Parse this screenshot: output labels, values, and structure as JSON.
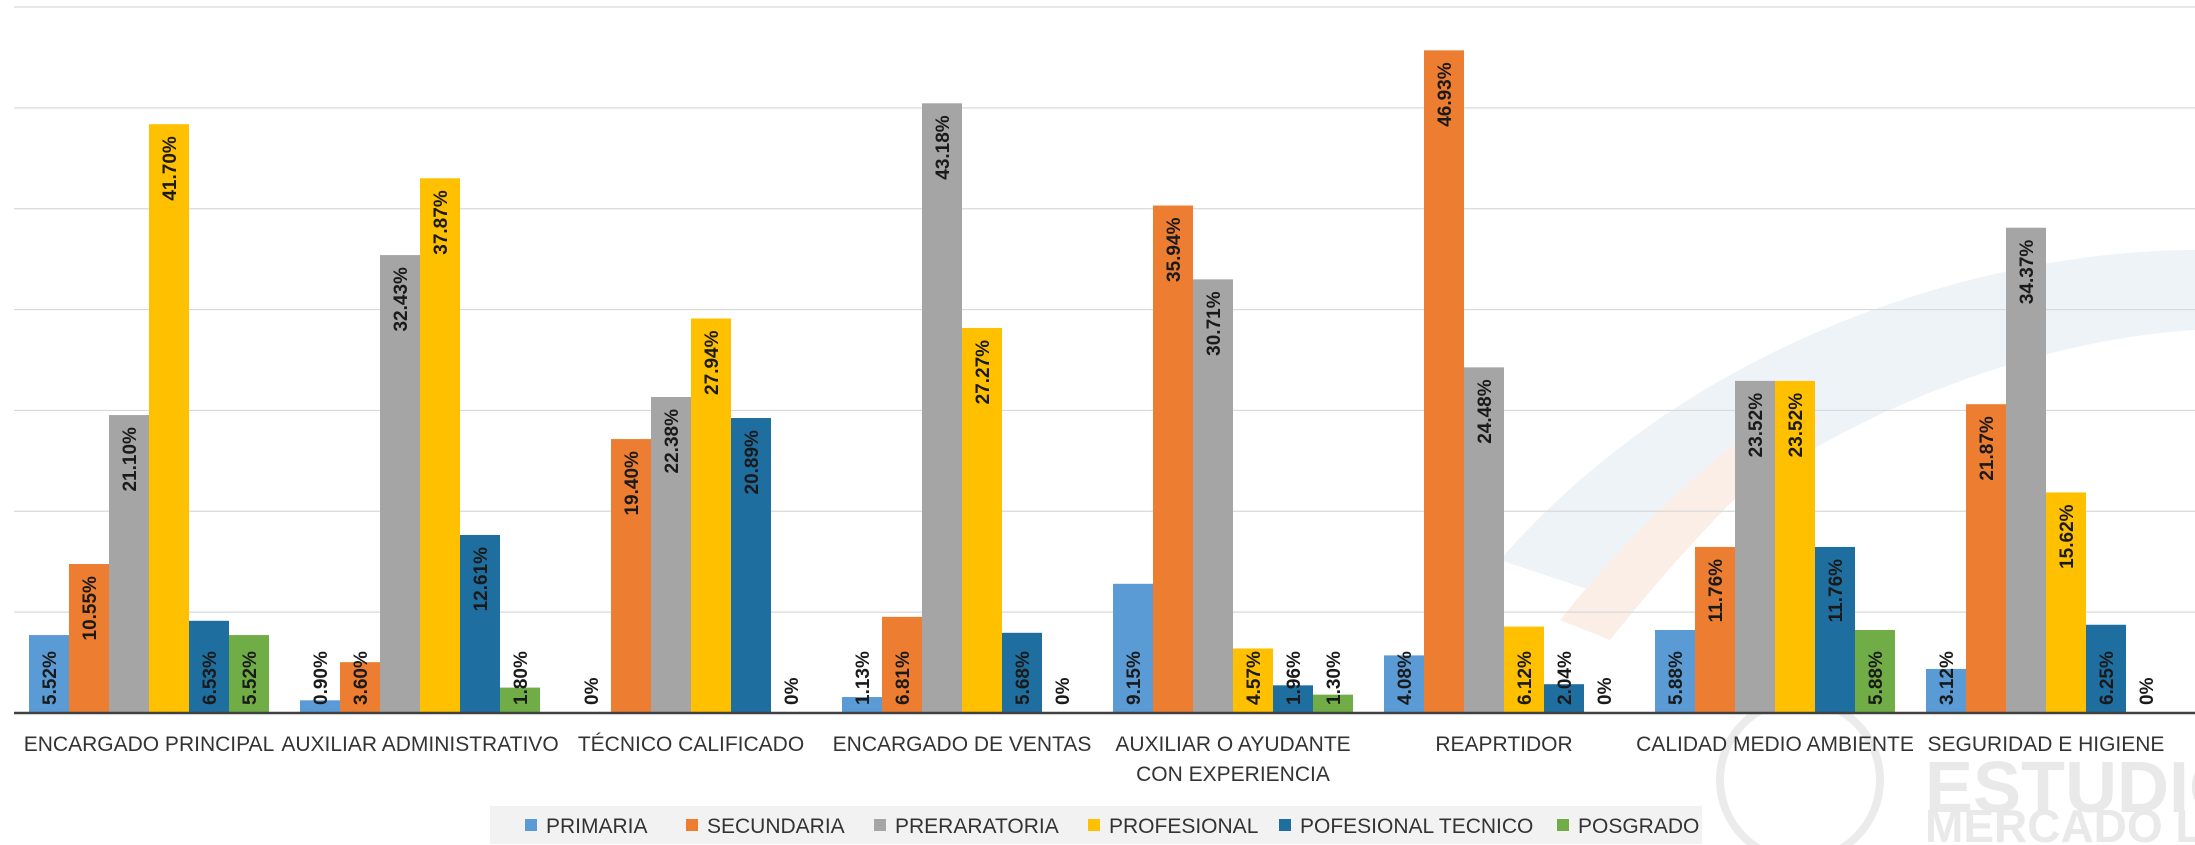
{
  "chart_data": {
    "type": "bar",
    "categories": [
      "ENCARGADO PRINCIPAL",
      "AUXILIAR ADMINISTRATIVO",
      "TÉCNICO CALIFICADO",
      "ENCARGADO DE VENTAS",
      "AUXILIAR O AYUDANTE CON EXPERIENCIA",
      "REAPRTIDOR",
      "CALIDAD MEDIO AMBIENTE",
      "SEGURIDAD E HIGIENE"
    ],
    "category_lines": [
      [
        "ENCARGADO PRINCIPAL"
      ],
      [
        "AUXILIAR ADMINISTRATIVO"
      ],
      [
        "TÉCNICO CALIFICADO"
      ],
      [
        "ENCARGADO DE VENTAS"
      ],
      [
        "AUXILIAR O AYUDANTE",
        "CON EXPERIENCIA"
      ],
      [
        "REAPRTIDOR"
      ],
      [
        "CALIDAD MEDIO AMBIENTE"
      ],
      [
        "SEGURIDAD E HIGIENE"
      ]
    ],
    "series": [
      {
        "name": "PRIMARIA",
        "color": "#5b9bd5",
        "values": [
          5.52,
          0.9,
          0,
          1.13,
          9.15,
          4.08,
          5.88,
          3.12
        ],
        "labels": [
          "5.52%",
          "0.90%",
          "0%",
          "1.13%",
          "9.15%",
          "4.08%",
          "5.88%",
          "3.12%"
        ]
      },
      {
        "name": "SECUNDARIA",
        "color": "#ed7d31",
        "values": [
          10.55,
          3.6,
          19.4,
          6.81,
          35.94,
          46.93,
          11.76,
          21.87
        ],
        "labels": [
          "10.55%",
          "3.60%",
          "19.40%",
          "6.81%",
          "35.94%",
          "46.93%",
          "11.76%",
          "21.87%"
        ]
      },
      {
        "name": "PRERARATORIA",
        "color": "#a5a5a5",
        "values": [
          21.1,
          32.43,
          22.38,
          43.18,
          30.71,
          24.48,
          23.52,
          34.37
        ],
        "labels": [
          "21.10%",
          "32.43%",
          "22.38%",
          "43.18%",
          "30.71%",
          "24.48%",
          "23.52%",
          "34.37%"
        ]
      },
      {
        "name": "PROFESIONAL",
        "color": "#ffc000",
        "values": [
          41.7,
          37.87,
          27.94,
          27.27,
          4.57,
          6.12,
          23.52,
          15.62
        ],
        "labels": [
          "41.70%",
          "37.87%",
          "27.94%",
          "27.27%",
          "4.57%",
          "6.12%",
          "23.52%",
          "15.62%"
        ]
      },
      {
        "name": "POFESIONAL TECNICO",
        "color": "#1f6ea0",
        "values": [
          6.53,
          12.61,
          20.89,
          5.68,
          1.96,
          2.04,
          11.76,
          6.25
        ],
        "labels": [
          "6.53%",
          "12.61%",
          "20.89%",
          "5.68%",
          "1.96%",
          "2.04%",
          "11.76%",
          "6.25%"
        ]
      },
      {
        "name": "POSGRADO",
        "color": "#70ad47",
        "values": [
          5.52,
          1.8,
          0,
          0,
          1.3,
          0,
          5.88,
          0
        ],
        "labels": [
          "5.52%",
          "1.80%",
          "0%",
          "0%",
          "1.30%",
          "0%",
          "5.88%",
          "0%"
        ]
      }
    ],
    "ylim": [
      0,
      50
    ],
    "grid": true,
    "legend": "bottom"
  },
  "watermark": {
    "line1": "ESTUDIO",
    "line2": "MERCADO LABO"
  }
}
